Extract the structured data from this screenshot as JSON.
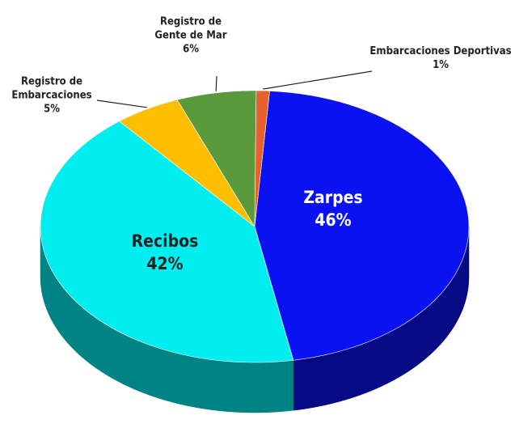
{
  "chart_data": {
    "type": "pie",
    "categories": [
      "Zarpes",
      "Recibos",
      "Registro de Embarcaciones",
      "Registro de Gente de Mar",
      "Embarcaciones Deportivas"
    ],
    "values": [
      46,
      42,
      5,
      6,
      1
    ],
    "value_labels": [
      "46%",
      "42%",
      "5%",
      "6%",
      "1%"
    ],
    "colors": [
      "#0a12f2",
      "#00eef0",
      "#ffbf00",
      "#5b9a3c",
      "#e8602c"
    ]
  }
}
